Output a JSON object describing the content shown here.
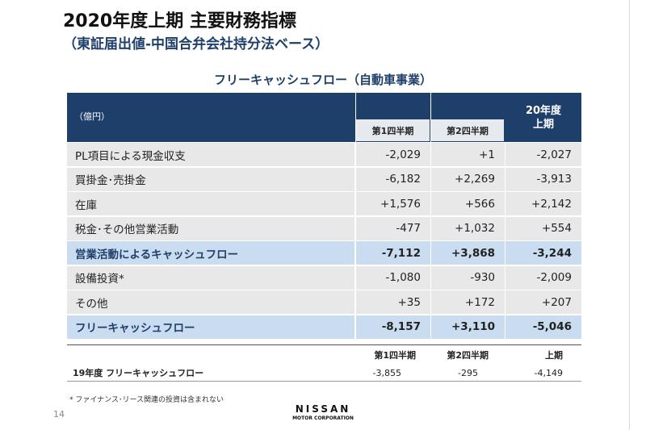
{
  "header": {
    "title": "2020年度上期 主要財務指標",
    "subtitle": "（東証届出値-中国合弁会社持分法ベース）"
  },
  "table": {
    "caption": "フリーキャッシュフロー（自動車事業）",
    "unit": "（億円）",
    "columns": [
      "第1四半期",
      "第2四半期",
      "20年度\n上期"
    ],
    "rows": [
      [
        "PL項目による現金収支",
        "-2,029",
        "+1",
        "-2,027"
      ],
      [
        "買掛金･売掛金",
        "-6,182",
        "+2,269",
        "-3,913"
      ],
      [
        "在庫",
        "+1,576",
        "+566",
        "+2,142"
      ],
      [
        "税金･その他営業活動",
        "-477",
        "+1,032",
        "+554"
      ],
      [
        "営業活動によるキャッシュフロー",
        "-7,112",
        "+3,868",
        "-3,244"
      ],
      [
        "設備投資*",
        "-1,080",
        "-930",
        "-2,009"
      ],
      [
        "その他",
        "+35",
        "+172",
        "+207"
      ],
      [
        "フリーキャッシュフロー",
        "-8,157",
        "+3,110",
        "-5,046"
      ]
    ],
    "highlighted_rows": [
      4,
      7
    ]
  },
  "prior_year": {
    "columns": [
      "第1四半期",
      "第2四半期",
      "上期"
    ],
    "row": [
      "19年度 フリーキャッシュフロー",
      "-3,855",
      "-295",
      "-4,149"
    ]
  },
  "footnote": "* ファイナンス･リース関連の投資は含まれない",
  "page_number": "14",
  "logo": {
    "name": "NISSAN",
    "subtitle": "MOTOR CORPORATION"
  }
}
